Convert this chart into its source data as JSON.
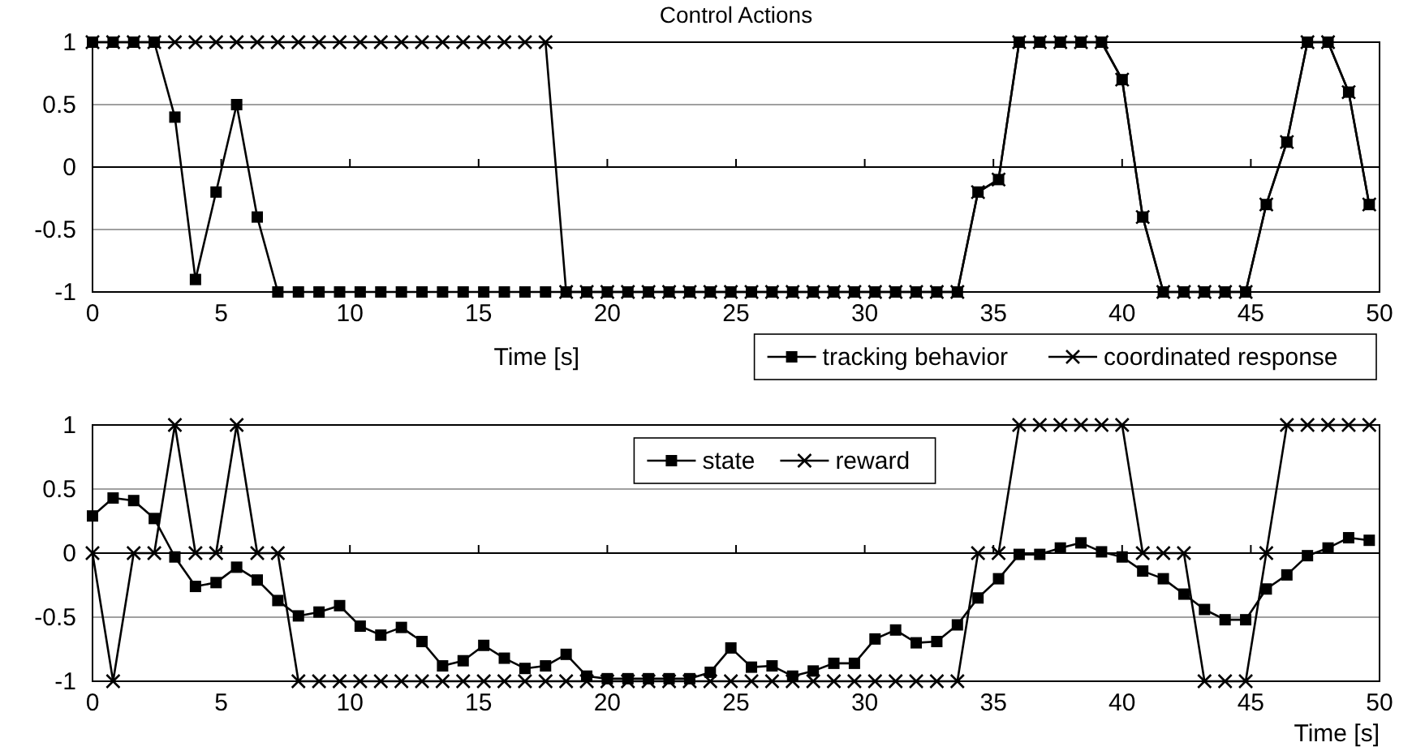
{
  "chart_data": [
    {
      "type": "line",
      "title": "Control Actions",
      "xlabel": "Time [s]",
      "xlim": [
        0,
        50
      ],
      "xticks": [
        0,
        5,
        10,
        15,
        20,
        25,
        30,
        35,
        40,
        45,
        50
      ],
      "ylim": [
        -1,
        1
      ],
      "yticks": [
        -1,
        -0.5,
        0,
        0.5,
        1
      ],
      "grid": "y",
      "legend": "bottom right",
      "x": [
        0,
        0.8,
        1.6,
        2.4,
        3.2,
        4.0,
        4.8,
        5.6,
        6.4,
        7.2,
        8.0,
        8.8,
        9.6,
        10.4,
        11.2,
        12.0,
        12.8,
        13.6,
        14.4,
        15.2,
        16.0,
        16.8,
        17.6,
        18.4,
        19.2,
        20.0,
        20.8,
        21.6,
        22.4,
        23.2,
        24.0,
        24.8,
        25.6,
        26.4,
        27.2,
        28.0,
        28.8,
        29.6,
        30.4,
        31.2,
        32.0,
        32.8,
        33.6,
        34.4,
        35.2,
        36.0,
        36.8,
        37.6,
        38.4,
        39.2,
        40.0,
        40.8,
        41.6,
        42.4,
        43.2,
        44.0,
        44.8,
        45.6,
        46.4,
        47.2,
        48.0,
        48.8,
        49.6
      ],
      "series": [
        {
          "name": "tracking behavior",
          "color": "#000000",
          "marker": "square",
          "values": [
            1,
            1,
            1,
            1,
            0.4,
            -0.9,
            -0.2,
            0.5,
            -0.4,
            -1,
            -1,
            -1,
            -1,
            -1,
            -1,
            -1,
            -1,
            -1,
            -1,
            -1,
            -1,
            -1,
            -1,
            -1,
            -1,
            -1,
            -1,
            -1,
            -1,
            -1,
            -1,
            -1,
            -1,
            -1,
            -1,
            -1,
            -1,
            -1,
            -1,
            -1,
            -1,
            -1,
            -1,
            -0.2,
            -0.1,
            1,
            1,
            1,
            1,
            1,
            0.7,
            -0.4,
            -1,
            -1,
            -1,
            -1,
            -1,
            -0.3,
            0.2,
            1,
            1,
            0.6,
            -0.3
          ]
        },
        {
          "name": "coordinated response",
          "color": "#000000",
          "marker": "cross",
          "values": [
            1,
            1,
            1,
            1,
            1,
            1,
            1,
            1,
            1,
            1,
            1,
            1,
            1,
            1,
            1,
            1,
            1,
            1,
            1,
            1,
            1,
            1,
            1,
            -1,
            -1,
            -1,
            -1,
            -1,
            -1,
            -1,
            -1,
            -1,
            -1,
            -1,
            -1,
            -1,
            -1,
            -1,
            -1,
            -1,
            -1,
            -1,
            -1,
            -0.2,
            -0.1,
            1,
            1,
            1,
            1,
            1,
            0.7,
            -0.4,
            -1,
            -1,
            -1,
            -1,
            -1,
            -0.3,
            0.2,
            1,
            1,
            0.6,
            -0.3
          ]
        }
      ]
    },
    {
      "type": "line",
      "xlabel": "Time [s]",
      "xlim": [
        0,
        50
      ],
      "xticks": [
        0,
        5,
        10,
        15,
        20,
        25,
        30,
        35,
        40,
        45,
        50
      ],
      "ylim": [
        -1,
        1
      ],
      "yticks": [
        -1,
        -0.5,
        0,
        0.5,
        1
      ],
      "grid": "y",
      "legend": "top",
      "x": [
        0,
        0.8,
        1.6,
        2.4,
        3.2,
        4.0,
        4.8,
        5.6,
        6.4,
        7.2,
        8.0,
        8.8,
        9.6,
        10.4,
        11.2,
        12.0,
        12.8,
        13.6,
        14.4,
        15.2,
        16.0,
        16.8,
        17.6,
        18.4,
        19.2,
        20.0,
        20.8,
        21.6,
        22.4,
        23.2,
        24.0,
        24.8,
        25.6,
        26.4,
        27.2,
        28.0,
        28.8,
        29.6,
        30.4,
        31.2,
        32.0,
        32.8,
        33.6,
        34.4,
        35.2,
        36.0,
        36.8,
        37.6,
        38.4,
        39.2,
        40.0,
        40.8,
        41.6,
        42.4,
        43.2,
        44.0,
        44.8,
        45.6,
        46.4,
        47.2,
        48.0,
        48.8,
        49.6
      ],
      "series": [
        {
          "name": "state",
          "color": "#000000",
          "marker": "square",
          "values": [
            0.29,
            0.43,
            0.41,
            0.27,
            -0.03,
            -0.26,
            -0.23,
            -0.11,
            -0.21,
            -0.37,
            -0.49,
            -0.46,
            -0.41,
            -0.57,
            -0.64,
            -0.58,
            -0.69,
            -0.88,
            -0.84,
            -0.72,
            -0.82,
            -0.9,
            -0.88,
            -0.79,
            -0.96,
            -0.98,
            -0.98,
            -0.98,
            -0.98,
            -0.98,
            -0.93,
            -0.74,
            -0.89,
            -0.88,
            -0.96,
            -0.92,
            -0.86,
            -0.86,
            -0.67,
            -0.6,
            -0.7,
            -0.69,
            -0.56,
            -0.35,
            -0.2,
            -0.01,
            -0.01,
            0.04,
            0.08,
            0.01,
            -0.03,
            -0.14,
            -0.2,
            -0.32,
            -0.44,
            -0.52,
            -0.52,
            -0.28,
            -0.17,
            -0.02,
            0.04,
            0.12,
            0.1
          ]
        },
        {
          "name": "reward",
          "color": "#000000",
          "marker": "cross",
          "values": [
            0,
            -1,
            0,
            0,
            1,
            0,
            0,
            1,
            0,
            0,
            -1,
            -1,
            -1,
            -1,
            -1,
            -1,
            -1,
            -1,
            -1,
            -1,
            -1,
            -1,
            -1,
            -1,
            -1,
            -1,
            -1,
            -1,
            -1,
            -1,
            -1,
            -1,
            -1,
            -1,
            -1,
            -1,
            -1,
            -1,
            -1,
            -1,
            -1,
            -1,
            -1,
            0,
            0,
            1,
            1,
            1,
            1,
            1,
            1,
            0,
            0,
            0,
            -1,
            -1,
            -1,
            0,
            1,
            1,
            1,
            1,
            1
          ]
        }
      ]
    }
  ]
}
